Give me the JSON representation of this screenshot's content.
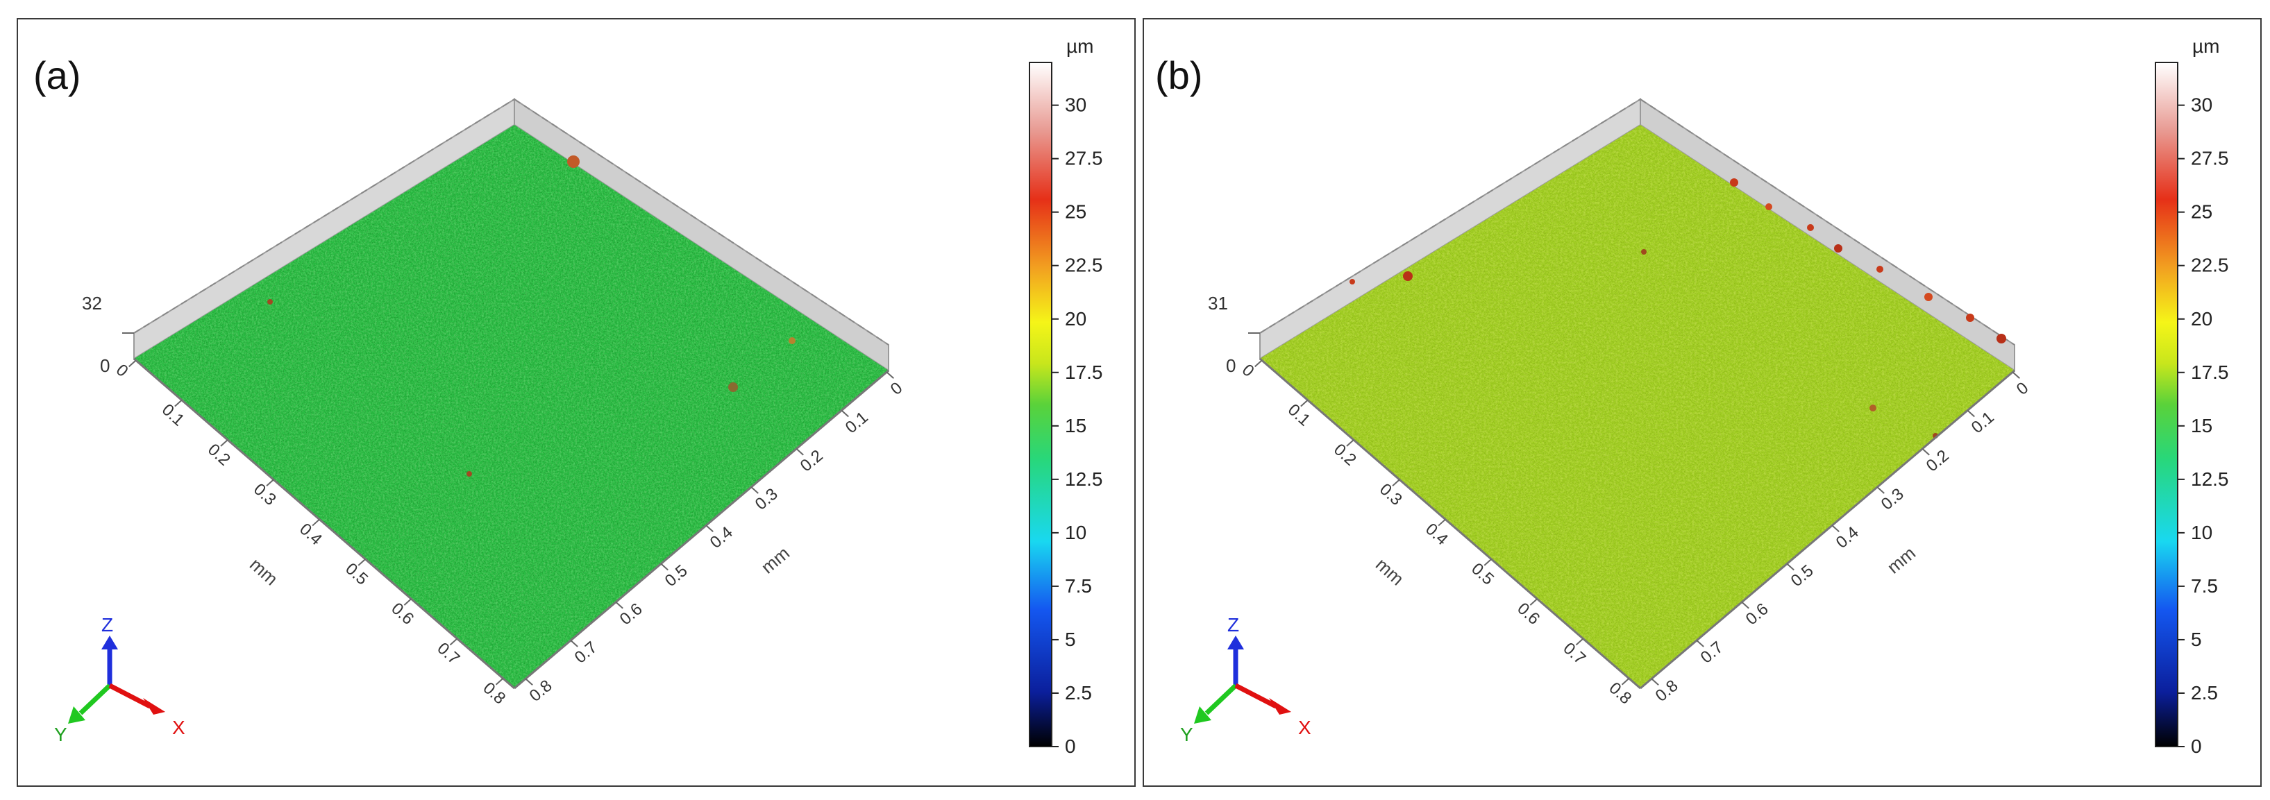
{
  "panels": [
    {
      "id": "a",
      "label": "(a)",
      "z_max_label": "32",
      "z_zero_label": "0",
      "x_axis_unit": "mm",
      "y_axis_unit": "mm",
      "x_ticks": [
        "0",
        "0.1",
        "0.2",
        "0.3",
        "0.4",
        "0.5",
        "0.6",
        "0.7",
        "0.8"
      ],
      "y_ticks": [
        "0",
        "0.1",
        "0.2",
        "0.3",
        "0.4",
        "0.5",
        "0.6",
        "0.7",
        "0.8"
      ],
      "surface_color": "#2ec84a",
      "colorbar": {
        "unit": "µm",
        "ticks": [
          "0",
          "2.5",
          "5",
          "7.5",
          "10",
          "12.5",
          "15",
          "17.5",
          "20",
          "22.5",
          "25",
          "27.5",
          "30"
        ]
      },
      "triad": {
        "z": "Z",
        "y": "Y",
        "x": "X"
      }
    },
    {
      "id": "b",
      "label": "(b)",
      "z_max_label": "31",
      "z_zero_label": "0",
      "x_axis_unit": "mm",
      "y_axis_unit": "mm",
      "x_ticks": [
        "0",
        "0.1",
        "0.2",
        "0.3",
        "0.4",
        "0.5",
        "0.6",
        "0.7",
        "0.8"
      ],
      "y_ticks": [
        "0",
        "0.1",
        "0.2",
        "0.3",
        "0.4",
        "0.5",
        "0.6",
        "0.7",
        "0.8"
      ],
      "surface_color": "#a6d625",
      "colorbar": {
        "unit": "µm",
        "ticks": [
          "0",
          "2.5",
          "5",
          "7.5",
          "10",
          "12.5",
          "15",
          "17.5",
          "20",
          "22.5",
          "25",
          "27.5",
          "30"
        ]
      },
      "triad": {
        "z": "Z",
        "y": "Y",
        "x": "X"
      }
    }
  ]
}
